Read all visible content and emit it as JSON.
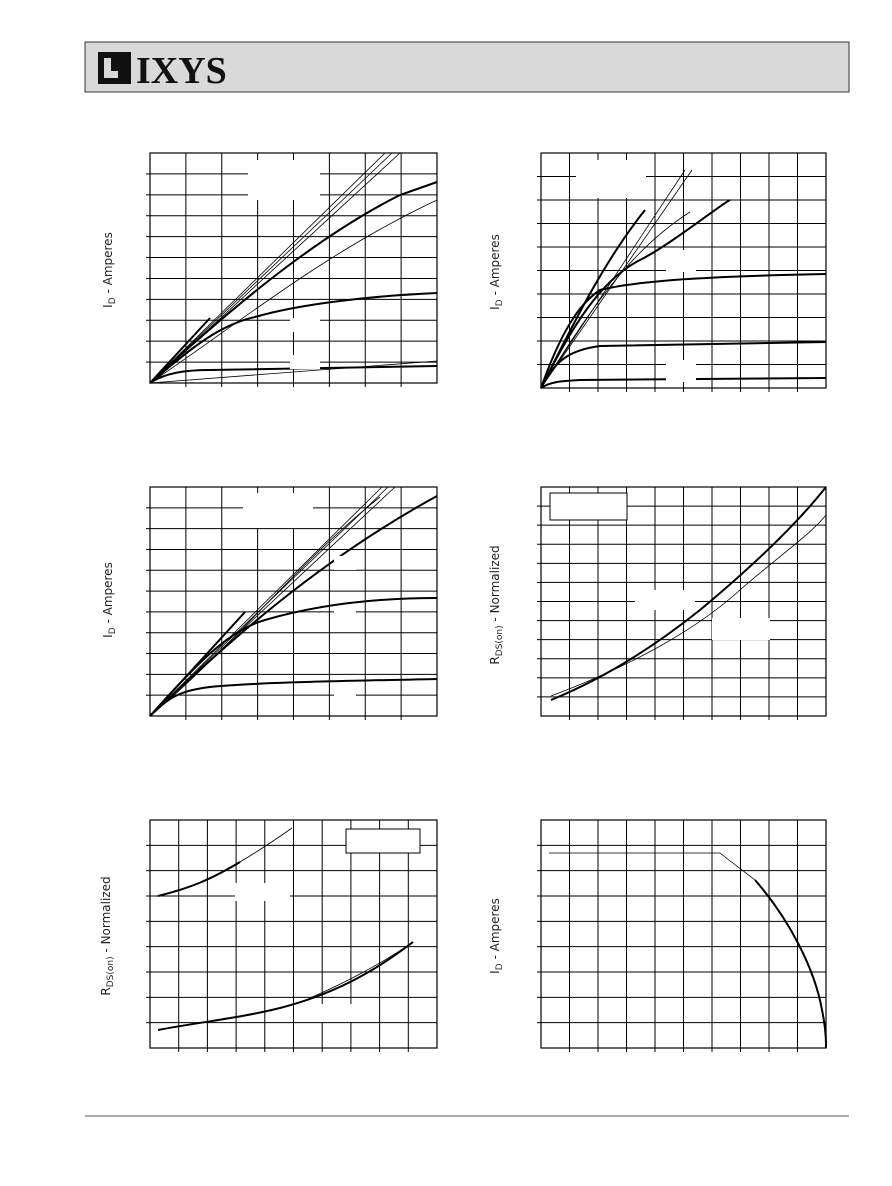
{
  "header": {
    "logo": "IXYS"
  },
  "charts": [
    {
      "ylabel": {
        "main": "I",
        "sub": "D",
        "rest": " - Amperes"
      }
    },
    {
      "ylabel": {
        "main": "I",
        "sub": "D",
        "rest": " - Amperes"
      }
    },
    {
      "ylabel": {
        "main": "I",
        "sub": "D",
        "rest": " - Amperes"
      }
    },
    {
      "ylabel": {
        "main": "R",
        "sub": "DS(on)",
        "rest": " - Normalized"
      }
    },
    {
      "ylabel": {
        "main": "R",
        "sub": "DS(on)",
        "rest": " - Normalized"
      }
    },
    {
      "ylabel": {
        "main": "I",
        "sub": "D",
        "rest": " - Amperes"
      }
    }
  ]
}
